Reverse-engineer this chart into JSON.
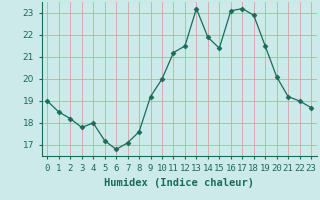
{
  "x": [
    0,
    1,
    2,
    3,
    4,
    5,
    6,
    7,
    8,
    9,
    10,
    11,
    12,
    13,
    14,
    15,
    16,
    17,
    18,
    19,
    20,
    21,
    22,
    23
  ],
  "y": [
    19.0,
    18.5,
    18.2,
    17.8,
    18.0,
    17.2,
    16.8,
    17.1,
    17.6,
    19.2,
    20.0,
    21.2,
    21.5,
    23.2,
    21.9,
    21.4,
    23.1,
    23.2,
    22.9,
    21.5,
    20.1,
    19.2,
    19.0,
    18.7
  ],
  "line_color": "#1a6b5a",
  "marker": "D",
  "markersize": 2.5,
  "background_color": "#cceaea",
  "grid_color": "#d9a0a0",
  "xlabel": "Humidex (Indice chaleur)",
  "ylim": [
    16.5,
    23.5
  ],
  "xlim": [
    -0.5,
    23.5
  ],
  "yticks": [
    17,
    18,
    19,
    20,
    21,
    22,
    23
  ],
  "xtick_labels": [
    "0",
    "1",
    "2",
    "3",
    "4",
    "5",
    "6",
    "7",
    "8",
    "9",
    "10",
    "11",
    "12",
    "13",
    "14",
    "15",
    "16",
    "17",
    "18",
    "19",
    "20",
    "21",
    "22",
    "23"
  ],
  "xlabel_fontsize": 7.5,
  "tick_fontsize": 6.5,
  "tick_color": "#1a6b5a",
  "axis_color": "#1a6b5a"
}
